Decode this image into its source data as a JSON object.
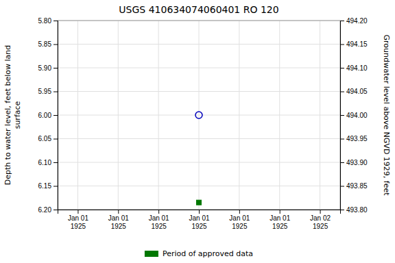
{
  "chart_data": {
    "type": "scatter",
    "title": "USGS 410634074060401 RO 120",
    "ylabel": "Depth to water level, feet below land\nsurface",
    "y2label": "Groundwater level above NGVD 1929, feet",
    "categories": [
      "Jan 01\n1925",
      "Jan 01\n1925",
      "Jan 01\n1925",
      "Jan 01\n1925",
      "Jan 01\n1925",
      "Jan 01\n1925",
      "Jan 02\n1925"
    ],
    "series": [
      {
        "color": "#0000bb",
        "marker": "circle",
        "values": [
          null,
          null,
          null,
          6.0,
          null,
          null,
          null
        ]
      },
      {
        "name": "Period of approved data",
        "color": "#007700",
        "marker": "square",
        "values": [
          null,
          null,
          null,
          6.185,
          null,
          null,
          null
        ]
      }
    ],
    "ylim": [
      6.2,
      5.8
    ],
    "yticks": [
      {
        "value": 5.8,
        "label": "5.80"
      },
      5.85,
      {
        "value": 5.9,
        "label": "5.90"
      },
      5.95,
      {
        "value": 6.0,
        "label": "6.00"
      },
      6.05,
      {
        "value": 6.1,
        "label": "6.10"
      },
      6.15,
      {
        "value": 6.2,
        "label": "6.20"
      }
    ],
    "y2lim": [
      493.8,
      494.2
    ],
    "y2ticks": [
      {
        "value": 494.2,
        "label": "494.20"
      },
      494.15,
      {
        "value": 494.1,
        "label": "494.10"
      },
      494.05,
      {
        "value": 494.0,
        "label": "494.00"
      },
      493.95,
      {
        "value": 493.9,
        "label": "493.90"
      },
      493.85,
      {
        "value": 493.8,
        "label": "493.80"
      }
    ],
    "grid": true,
    "legend": "bottom"
  }
}
